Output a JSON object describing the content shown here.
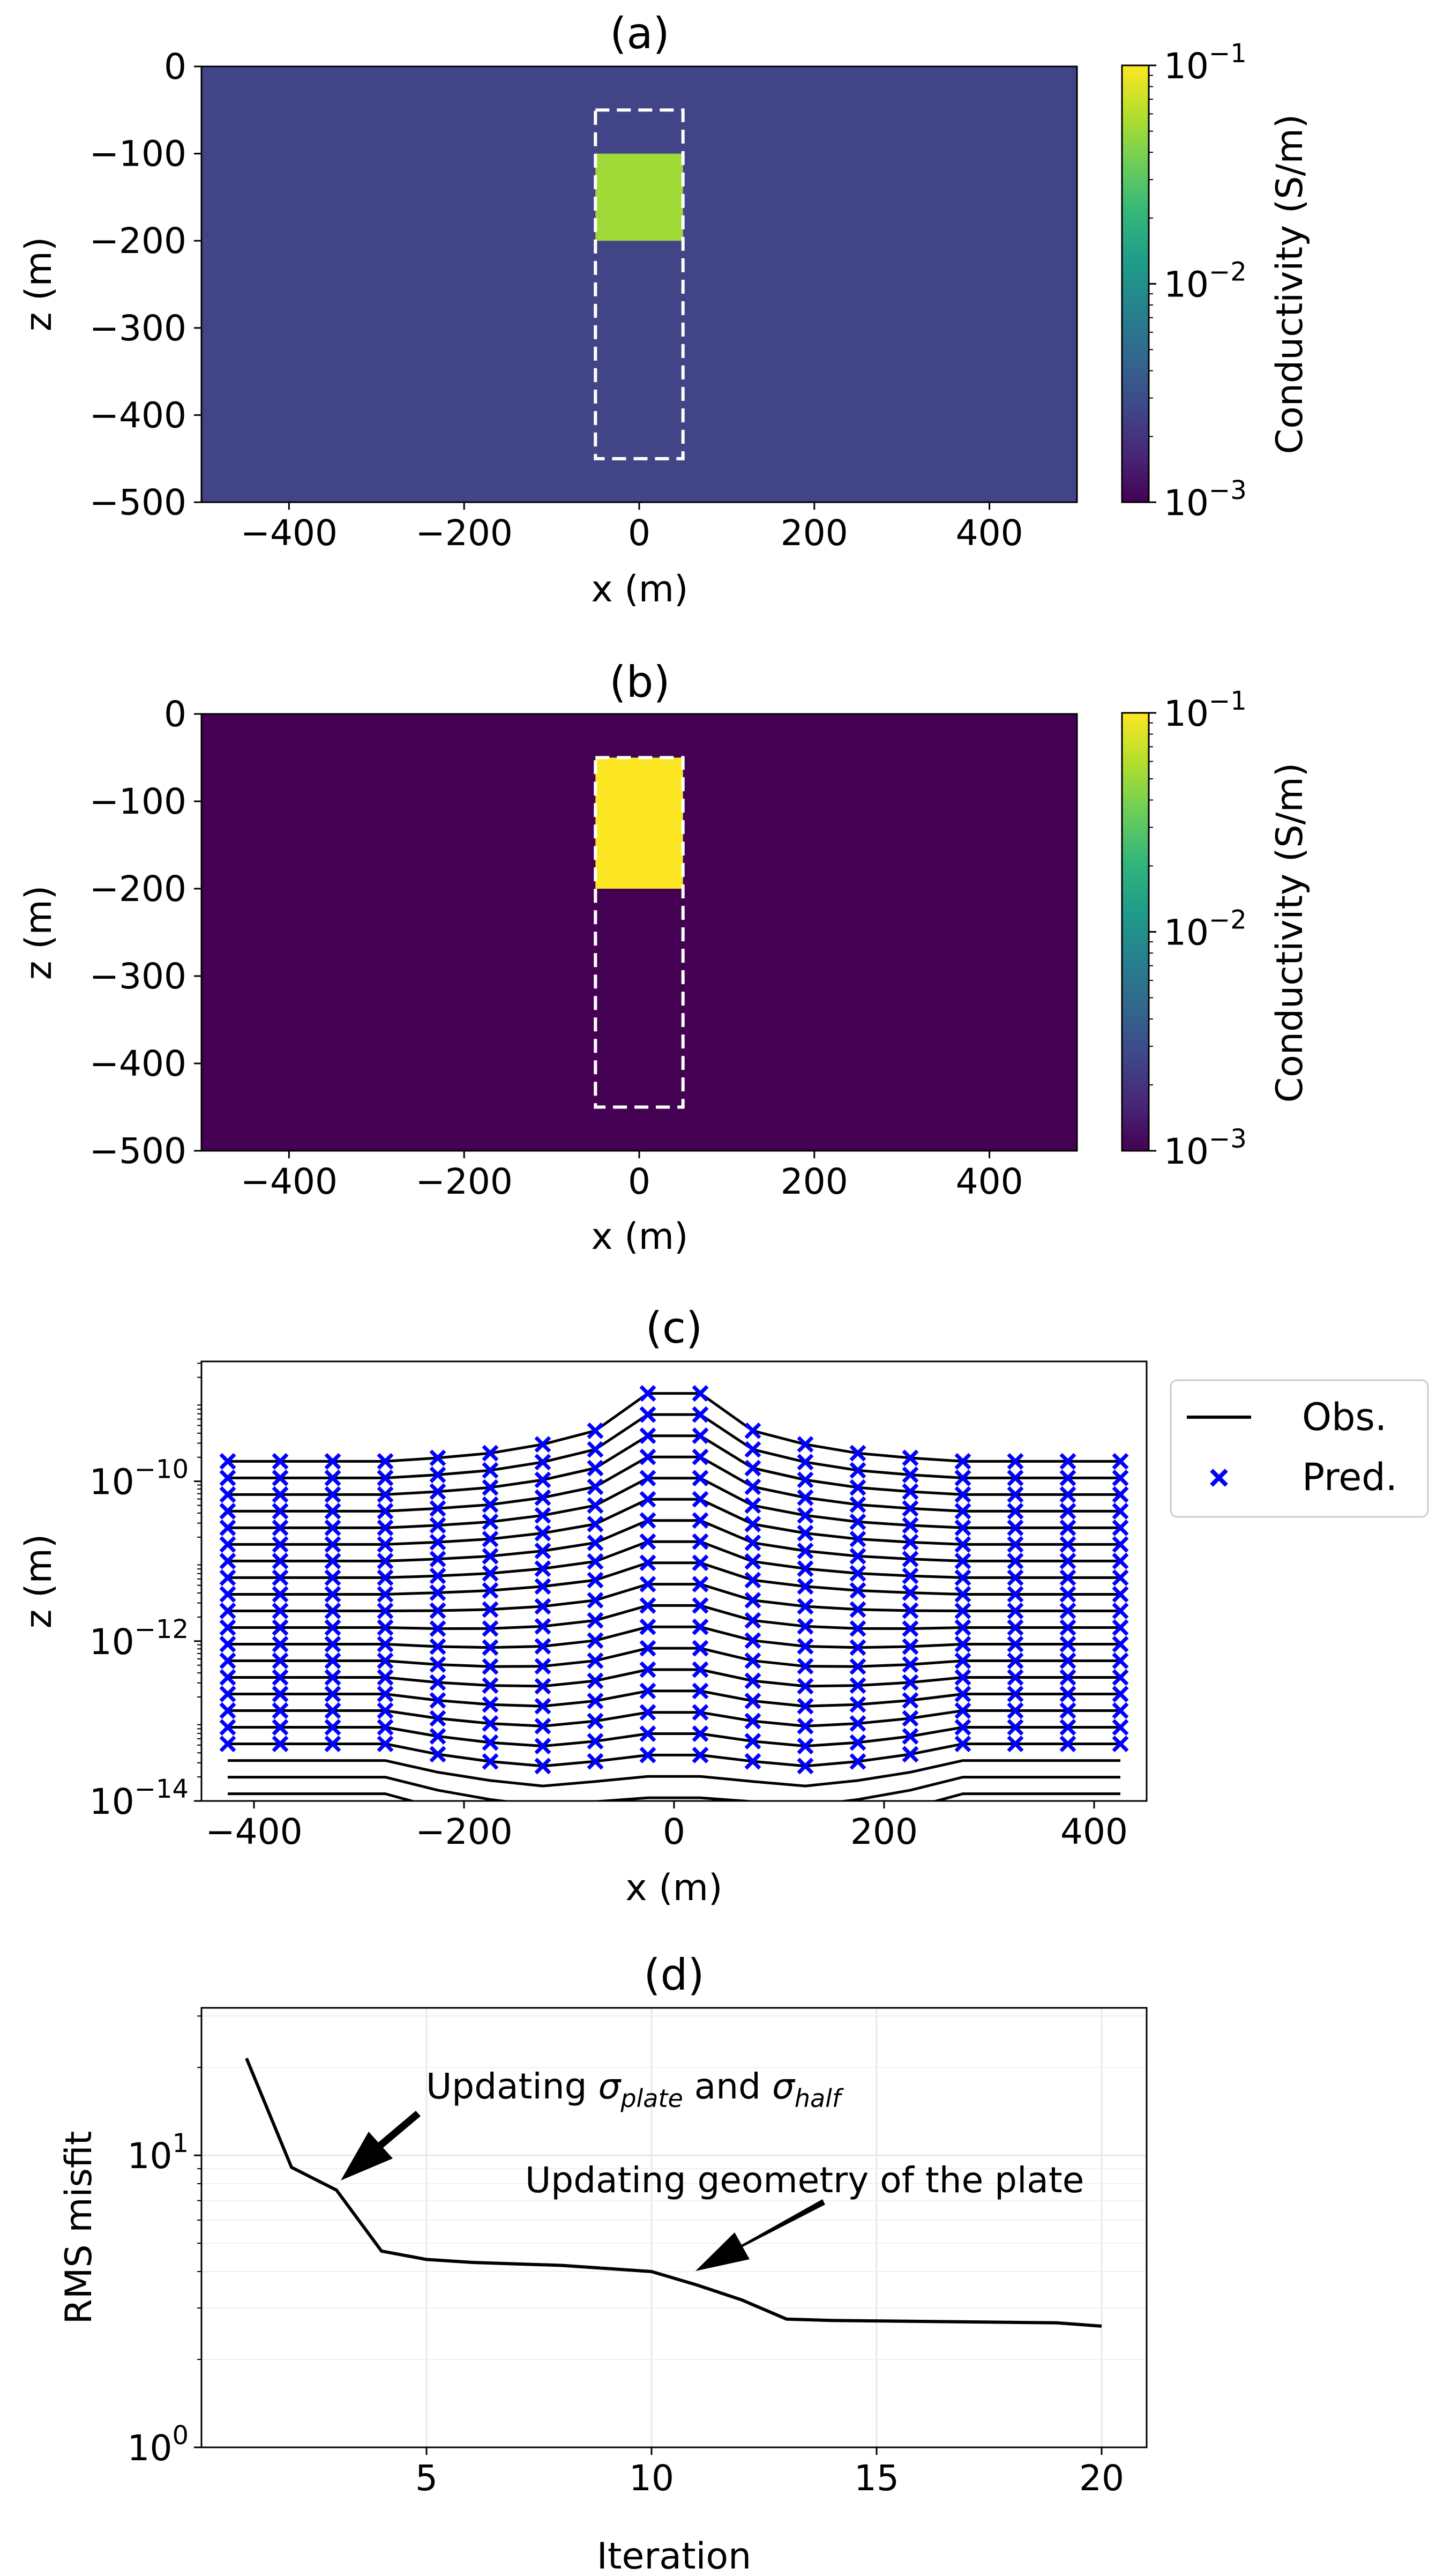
{
  "chart_data": [
    {
      "panel": "a",
      "type": "heatmap",
      "title": "(a)",
      "xlabel": "x (m)",
      "ylabel": "z (m)",
      "xlim": [
        -500,
        500
      ],
      "ylim": [
        -500,
        0
      ],
      "xticks": [
        -400,
        -200,
        0,
        200,
        400
      ],
      "yticks": [
        0,
        -100,
        -200,
        -300,
        -400,
        -500
      ],
      "xtick_labels": [
        "−400",
        "−200",
        "0",
        "200",
        "400"
      ],
      "ytick_labels": [
        "0",
        "−100",
        "−200",
        "−300",
        "−400",
        "−500"
      ],
      "background_color": "#414487",
      "anomaly": {
        "x": [
          -50,
          50
        ],
        "z": [
          -200,
          -100
        ],
        "color": "#a0da39"
      },
      "search_box": {
        "x": [
          -50,
          50
        ],
        "z": [
          -450,
          -50
        ]
      },
      "colorbar": {
        "label": "Conductivity (S/m)",
        "scale": "log",
        "range": [
          0.001,
          0.1
        ],
        "tick_base": [
          "10",
          "10",
          "10"
        ],
        "tick_exp": [
          "−1",
          "−2",
          "−3"
        ],
        "tick_values": [
          0.1,
          0.01,
          0.001
        ],
        "colors": [
          "#440154",
          "#482878",
          "#3e4989",
          "#31688e",
          "#26828e",
          "#1f9e89",
          "#35b779",
          "#6ece58",
          "#b5de2b",
          "#fde725"
        ]
      }
    },
    {
      "panel": "b",
      "type": "heatmap",
      "title": "(b)",
      "xlabel": "x (m)",
      "ylabel": "z (m)",
      "xlim": [
        -500,
        500
      ],
      "ylim": [
        -500,
        0
      ],
      "xticks": [
        -400,
        -200,
        0,
        200,
        400
      ],
      "yticks": [
        0,
        -100,
        -200,
        -300,
        -400,
        -500
      ],
      "xtick_labels": [
        "−400",
        "−200",
        "0",
        "200",
        "400"
      ],
      "ytick_labels": [
        "0",
        "−100",
        "−200",
        "−300",
        "−400",
        "−500"
      ],
      "background_color": "#440154",
      "anomaly": {
        "x": [
          -50,
          50
        ],
        "z": [
          -200,
          -50
        ],
        "color": "#fde725"
      },
      "search_box": {
        "x": [
          -50,
          50
        ],
        "z": [
          -450,
          -50
        ]
      },
      "colorbar": {
        "label": "Conductivity (S/m)",
        "scale": "log",
        "range": [
          0.001,
          0.1
        ],
        "tick_base": [
          "10",
          "10",
          "10"
        ],
        "tick_exp": [
          "−1",
          "−2",
          "−3"
        ],
        "tick_values": [
          0.1,
          0.01,
          0.001
        ],
        "colors": [
          "#440154",
          "#482878",
          "#3e4989",
          "#31688e",
          "#26828e",
          "#1f9e89",
          "#35b779",
          "#6ece58",
          "#b5de2b",
          "#fde725"
        ]
      }
    },
    {
      "panel": "c",
      "type": "line",
      "title": "(c)",
      "xlabel": "x (m)",
      "ylabel": "z (m)",
      "xlim": [
        -450,
        450
      ],
      "ylim_log10": [
        -14,
        -8.5
      ],
      "xticks": [
        -400,
        -200,
        0,
        200,
        400
      ],
      "xtick_labels": [
        "−400",
        "−200",
        "0",
        "200",
        "400"
      ],
      "yticks_log10": [
        -10,
        -12,
        -14
      ],
      "ytick_base": [
        "10",
        "10",
        "10"
      ],
      "ytick_exp": [
        "−10",
        "−12",
        "−14"
      ],
      "x": [
        -425,
        -375,
        -325,
        -275,
        -225,
        -175,
        -125,
        -75,
        -25,
        25,
        75,
        125,
        175,
        225,
        275,
        325,
        375,
        425
      ],
      "n_time_gates": 21,
      "edge_top_log10": -9.75,
      "edge_step_log10": 0.208,
      "center_top_log10": -8.9,
      "center_step_log10": 0.265,
      "peak_weights": [
        0,
        0,
        0,
        0,
        0.05,
        0.12,
        0.25,
        0.45,
        1,
        1,
        0.45,
        0.25,
        0.12,
        0.05,
        0,
        0,
        0,
        0
      ],
      "trough_weights": [
        0,
        0,
        0,
        0,
        0.3,
        0.5,
        0.6,
        0.4,
        0.05,
        0.05,
        0.4,
        0.6,
        0.5,
        0.3,
        0,
        0,
        0,
        0
      ],
      "trough_depth_log10": 0.55,
      "pred_gates": 18,
      "legend": {
        "obs_label": "Obs.",
        "pred_label": "Pred."
      },
      "series_colors": {
        "obs": "#000000",
        "pred": "#0000ff"
      }
    },
    {
      "panel": "d",
      "type": "line",
      "title": "(d)",
      "xlabel": "Iteration",
      "ylabel": "RMS misfit",
      "scale_y": "log",
      "xlim": [
        0,
        21
      ],
      "ylim": [
        1,
        32
      ],
      "xticks": [
        5,
        10,
        15,
        20
      ],
      "xtick_labels": [
        "5",
        "10",
        "15",
        "20"
      ],
      "yticks": [
        1,
        10
      ],
      "ytick_base": [
        "10",
        "10"
      ],
      "ytick_exp": [
        "0",
        "1"
      ],
      "x": [
        1,
        2,
        3,
        4,
        5,
        6,
        7,
        8,
        9,
        10,
        11,
        12,
        13,
        14,
        15,
        16,
        17,
        18,
        19,
        20
      ],
      "y": [
        21.5,
        9.1,
        7.6,
        4.7,
        4.4,
        4.3,
        4.25,
        4.2,
        4.1,
        4.0,
        3.6,
        3.2,
        2.75,
        2.72,
        2.71,
        2.7,
        2.69,
        2.68,
        2.67,
        2.6
      ],
      "annotations": [
        {
          "text_main": "Updating ",
          "sym1": "σ",
          "sub1": "plate",
          "mid": " and ",
          "sym2": "σ",
          "sub2": "half",
          "arrow_to": [
            3,
            7.6
          ]
        },
        {
          "text": "Updating geometry of the plate",
          "arrow_to": [
            11,
            3.6
          ]
        }
      ]
    }
  ]
}
